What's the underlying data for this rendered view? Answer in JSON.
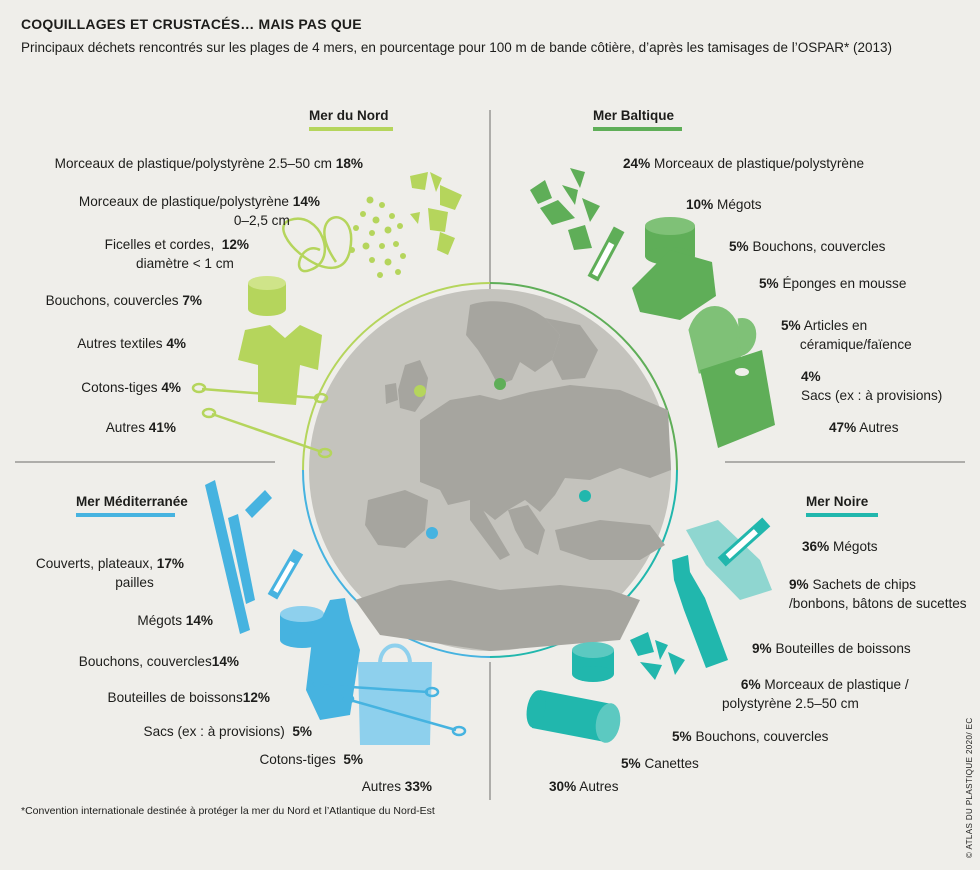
{
  "title": "COQUILLAGES ET CRUSTACÉS… MAIS PAS QUE",
  "subtitle": "Principaux déchets rencontrés sur les plages de 4 mers, en pourcentage pour 100 m de bande côtière, d’après les tamisages de l’OSPAR* (2013)",
  "footnote": "*Convention internationale destinée à protéger la mer du Nord et l’Atlantique du Nord-Est",
  "credit": "© ATLAS DU PLASTIQUE 2020/ EC",
  "colors": {
    "nord": "#b5d55c",
    "baltique": "#5fae58",
    "mediterranee": "#46b3e0",
    "noire": "#21b7ad",
    "globe": "#c4c3bd",
    "land": "#a6a59f",
    "line": "#6c6c6a"
  },
  "seas": {
    "nord": {
      "name": "Mer du Nord",
      "items": [
        {
          "label": "Morceaux de plastique/polystyrène  2.5–50 cm",
          "pct": "18%"
        },
        {
          "label": "Morceaux de plastique/polystyrène",
          "label2": "0–2,5 cm",
          "pct": "14%"
        },
        {
          "label": "Ficelles et cordes,",
          "label2": "diamètre < 1 cm",
          "pct": "12%"
        },
        {
          "label": "Bouchons, couvercles",
          "pct": "7%"
        },
        {
          "label": "Autres textiles",
          "pct": "4%"
        },
        {
          "label": "Cotons-tiges",
          "pct": "4%"
        },
        {
          "label": "Autres",
          "pct": "41%"
        }
      ]
    },
    "baltique": {
      "name": "Mer Baltique",
      "items": [
        {
          "label": "Morceaux de plastique/polystyrène",
          "pct": "24%"
        },
        {
          "label": "Mégots",
          "pct": "10%"
        },
        {
          "label": "Bouchons, couvercles",
          "pct": "5%"
        },
        {
          "label": "Éponges en mousse",
          "pct": "5%"
        },
        {
          "label": "Articles en",
          "label2": "céramique/faïence",
          "pct": "5%"
        },
        {
          "label": "Sacs (ex : à provisions)",
          "pct": "4%"
        },
        {
          "label": "Autres",
          "pct": "47%"
        }
      ]
    },
    "mediterranee": {
      "name": "Mer Méditerranée",
      "items": [
        {
          "label": "Couverts, plateaux,",
          "label2": "pailles",
          "pct": "17%"
        },
        {
          "label": "Mégots",
          "pct": "14%"
        },
        {
          "label": "Bouchons, couvercles",
          "pct": "14%"
        },
        {
          "label": "Bouteilles de boissons",
          "pct": "12%"
        },
        {
          "label": "Sacs (ex : à provisions)",
          "pct": "5%"
        },
        {
          "label": "Cotons-tiges",
          "pct": "5%"
        },
        {
          "label": "Autres",
          "pct": "33%"
        }
      ]
    },
    "noire": {
      "name": "Mer Noire",
      "items": [
        {
          "label": "Mégots",
          "pct": "36%"
        },
        {
          "label": "Sachets de chips",
          "label2": "/bonbons, bâtons de sucettes",
          "pct": "9%"
        },
        {
          "label": "Bouteilles de boissons",
          "pct": "9%"
        },
        {
          "label": "Morceaux de plastique /",
          "label2": "polystyrène  2.5–50 cm",
          "pct": "6%"
        },
        {
          "label": "Bouchons, couvercles",
          "pct": "5%"
        },
        {
          "label": "Canettes",
          "pct": "5%"
        },
        {
          "label": "Autres",
          "pct": "30%"
        }
      ]
    }
  }
}
